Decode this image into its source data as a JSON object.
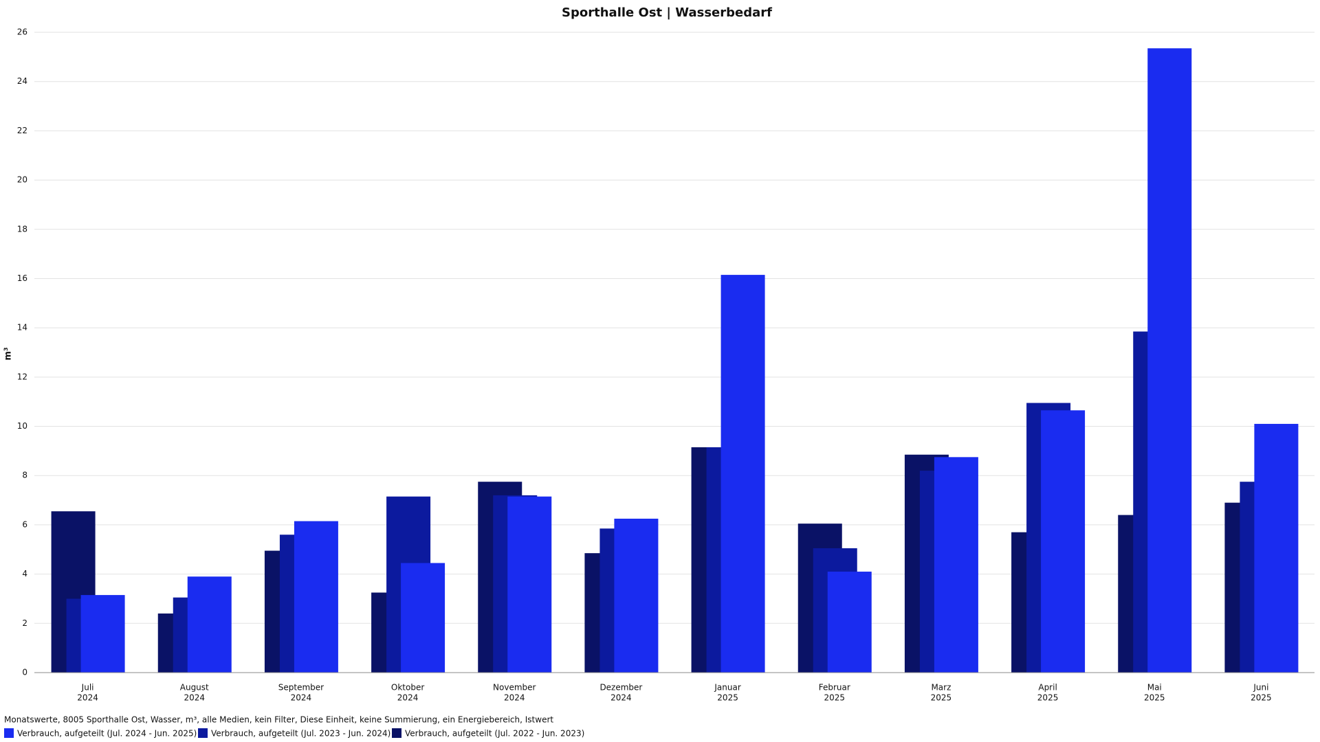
{
  "chart_data": {
    "type": "bar",
    "title": "Sporthalle Ost | Wasserbedarf",
    "y_label": "m³",
    "categories": [
      [
        "Juli",
        "2024"
      ],
      [
        "August",
        "2024"
      ],
      [
        "September",
        "2024"
      ],
      [
        "Oktober",
        "2024"
      ],
      [
        "November",
        "2024"
      ],
      [
        "Dezember",
        "2024"
      ],
      [
        "Januar",
        "2025"
      ],
      [
        "Februar",
        "2025"
      ],
      [
        "Marz",
        "2025"
      ],
      [
        "April",
        "2025"
      ],
      [
        "Mai",
        "2025"
      ],
      [
        "Juni",
        "2025"
      ]
    ],
    "series": [
      {
        "name": "Verbrauch, aufgeteilt (Jul. 2024 - Jun. 2025)",
        "color": "#1a2cf0",
        "values": [
          3.15,
          3.9,
          6.15,
          4.45,
          7.15,
          6.25,
          16.15,
          4.1,
          8.75,
          10.65,
          25.35,
          10.1
        ]
      },
      {
        "name": "Verbrauch, aufgeteilt (Jul. 2023 - Jun. 2024)",
        "color": "#0c1a9e",
        "values": [
          3.0,
          3.05,
          5.6,
          7.15,
          7.2,
          5.85,
          9.15,
          5.05,
          8.2,
          10.95,
          13.85,
          7.75
        ]
      },
      {
        "name": "Verbrauch, aufgeteilt (Jul. 2022 - Jun. 2023)",
        "color": "#0a1266",
        "values": [
          6.55,
          2.4,
          4.95,
          3.25,
          7.75,
          4.85,
          9.15,
          6.05,
          8.85,
          5.7,
          6.4,
          6.9
        ]
      }
    ],
    "ylim": [
      0,
      26
    ],
    "yticks": [
      0,
      2,
      4,
      6,
      8,
      10,
      12,
      14,
      16,
      18,
      20,
      22,
      24,
      26
    ],
    "grid": true,
    "footnote": "Monatswerte, 8005 Sporthalle Ost, Wasser, m³, alle Medien, kein Filter, Diese Einheit, keine Summierung, ein Energiebereich, Istwert"
  }
}
